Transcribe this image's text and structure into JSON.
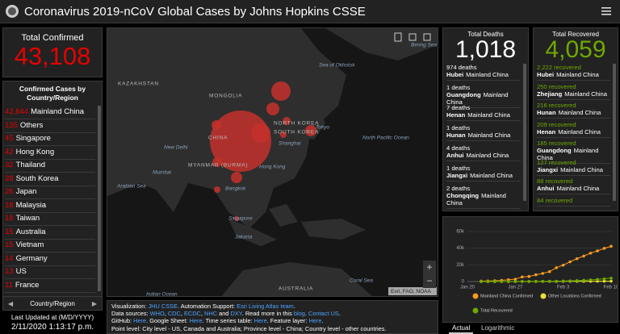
{
  "header": {
    "title": "Coronavirus 2019-nCoV Global Cases by Johns Hopkins CSSE"
  },
  "confirmed": {
    "label": "Total Confirmed",
    "value": "43,108",
    "list_title": "Confirmed Cases by Country/Region",
    "rows": [
      {
        "count": "42,644",
        "place": "Mainland China"
      },
      {
        "count": "135",
        "place": "Others"
      },
      {
        "count": "45",
        "place": "Singapore"
      },
      {
        "count": "42",
        "place": "Hong Kong"
      },
      {
        "count": "32",
        "place": "Thailand"
      },
      {
        "count": "28",
        "place": "South Korea"
      },
      {
        "count": "26",
        "place": "Japan"
      },
      {
        "count": "18",
        "place": "Malaysia"
      },
      {
        "count": "18",
        "place": "Taiwan"
      },
      {
        "count": "15",
        "place": "Australia"
      },
      {
        "count": "15",
        "place": "Vietnam"
      },
      {
        "count": "14",
        "place": "Germany"
      },
      {
        "count": "13",
        "place": "US"
      },
      {
        "count": "11",
        "place": "France"
      }
    ],
    "footer": "Country/Region"
  },
  "last_updated": {
    "label": "Last Updated at (M/D/YYYY)",
    "value": "2/11/2020 1:13:17 p.m."
  },
  "map": {
    "labels": [
      "KAZAKHSTAN",
      "MONGOLIA",
      "Sea of Okhotsk",
      "NORTH KOREA",
      "SOUTH KOREA",
      "Tokyo",
      "CHINA",
      "Shanghai",
      "North Pacific Ocean",
      "New Delhi",
      "Mumbai",
      "MYANMAR (BURMA)",
      "Hong Kong",
      "Arabian Sea",
      "Bangkok",
      "Singapore",
      "Jakarta",
      "Indian Ocean",
      "AUSTRALIA",
      "Coral Sea",
      "Bering Sea"
    ],
    "attribution": "Esri, FAO, NOAA"
  },
  "sources": {
    "lines": [
      [
        {
          "text": "Visualization: ",
          "link": false
        },
        {
          "text": "JHU CSSE",
          "link": true
        },
        {
          "text": ". Automation Support: ",
          "link": false
        },
        {
          "text": "Esri Living Atlas team",
          "link": true
        },
        {
          "text": ".",
          "link": false
        }
      ],
      [
        {
          "text": "Data sources: ",
          "link": false
        },
        {
          "text": "WHO",
          "link": true
        },
        {
          "text": ", ",
          "link": false
        },
        {
          "text": "CDC",
          "link": true
        },
        {
          "text": ", ",
          "link": false
        },
        {
          "text": "ECDC",
          "link": true
        },
        {
          "text": ", ",
          "link": false
        },
        {
          "text": "NHC",
          "link": true
        },
        {
          "text": " and ",
          "link": false
        },
        {
          "text": "DXY",
          "link": true
        },
        {
          "text": ". Read more in this ",
          "link": false
        },
        {
          "text": "blog",
          "link": true
        },
        {
          "text": ". ",
          "link": false
        },
        {
          "text": "Contact US",
          "link": true
        },
        {
          "text": ".",
          "link": false
        }
      ],
      [
        {
          "text": "GitHub: ",
          "link": false
        },
        {
          "text": "Here",
          "link": true
        },
        {
          "text": ". Google Sheet: ",
          "link": false
        },
        {
          "text": "Here",
          "link": true
        },
        {
          "text": ". Time series table: ",
          "link": false
        },
        {
          "text": "Here",
          "link": true
        },
        {
          "text": ". Feature layer: ",
          "link": false
        },
        {
          "text": "Here",
          "link": true
        },
        {
          "text": ".",
          "link": false
        }
      ],
      [
        {
          "text": "Point level: City level - US, Canada and Australia; Province level - China; Country level - other countries.",
          "link": false
        }
      ]
    ]
  },
  "deaths": {
    "label": "Total Deaths",
    "value": "1,018",
    "items": [
      {
        "count": "974 deaths",
        "place": "Hubei",
        "region": "Mainland China"
      },
      {
        "count": "1 deaths",
        "place": "Guangdong",
        "region": "Mainland China"
      },
      {
        "count": "7 deaths",
        "place": "Henan",
        "region": "Mainland China"
      },
      {
        "count": "1 deaths",
        "place": "Hunan",
        "region": "Mainland China"
      },
      {
        "count": "4 deaths",
        "place": "Anhui",
        "region": "Mainland China"
      },
      {
        "count": "1 deaths",
        "place": "Jiangxi",
        "region": "Mainland China"
      },
      {
        "count": "2 deaths",
        "place": "Chongqing",
        "region": "Mainland China"
      }
    ]
  },
  "recovered": {
    "label": "Total Recovered",
    "value": "4,059",
    "items": [
      {
        "count": "2,222 recovered",
        "place": "Hubei",
        "region": "Mainland China"
      },
      {
        "count": "250 recovered",
        "place": "Zhejiang",
        "region": "Mainland China"
      },
      {
        "count": "216 recovered",
        "place": "Hunan",
        "region": "Mainland China"
      },
      {
        "count": "209 recovered",
        "place": "Henan",
        "region": "Mainland China"
      },
      {
        "count": "185 recovered",
        "place": "Guangdong",
        "region": "Mainland China"
      },
      {
        "count": "127 recovered",
        "place": "Jiangxi",
        "region": "Mainland China"
      },
      {
        "count": "88 recovered",
        "place": "Anhui",
        "region": "Mainland China"
      },
      {
        "count": "84 recovered"
      }
    ]
  },
  "chart_data": {
    "type": "line",
    "categories": [
      "Jan 20",
      null,
      null,
      null,
      null,
      null,
      null,
      "Jan 27",
      null,
      null,
      null,
      null,
      null,
      null,
      "Feb 3",
      null,
      null,
      null,
      null,
      null,
      null,
      "Feb 10"
    ],
    "series": [
      {
        "name": "Mainland China Confirmed",
        "color": "#f79b1f",
        "values": [
          null,
          null,
          548,
          643,
          920,
          1406,
          2075,
          2877,
          5509,
          6087,
          8141,
          9802,
          11891,
          16630,
          19716,
          23707,
          27440,
          30587,
          34110,
          36814,
          39829,
          42354
        ]
      },
      {
        "name": "Other Locations Confirmed",
        "color": "#e8e230",
        "values": [
          null,
          null,
          7,
          10,
          21,
          32,
          55,
          67,
          90,
          127,
          147,
          168,
          199,
          226,
          309,
          317,
          346,
          377,
          405,
          427,
          439,
          446
        ]
      },
      {
        "name": "Total Recovered",
        "color": "#70a800",
        "values": [
          null,
          null,
          28,
          30,
          36,
          39,
          49,
          58,
          101,
          120,
          135,
          214,
          275,
          463,
          614,
          843,
          1115,
          1477,
          1999,
          2596,
          3219,
          4059
        ]
      }
    ],
    "ylim": [
      0,
      60000
    ],
    "yticks": [
      0,
      {
        "value": 20000,
        "label": "20k"
      },
      {
        "value": 40000,
        "label": "40k"
      },
      {
        "value": 60000,
        "label": "60k"
      }
    ],
    "grid": true,
    "tabs": [
      "Actual",
      "Logarithmic"
    ]
  }
}
